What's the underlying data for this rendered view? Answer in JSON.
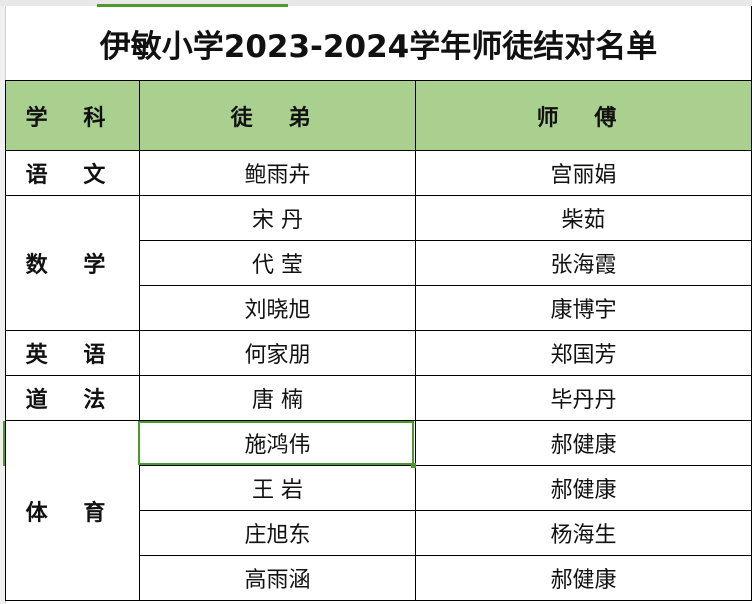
{
  "title": "伊敏小学2023-2024学年师徒结对名单",
  "headers": {
    "subject": "学 科",
    "apprentice": "徒 弟",
    "mentor": "师 傅"
  },
  "groups": [
    {
      "subject": "语 文",
      "rows": [
        {
          "apprentice": "鲍雨卉",
          "mentor": "宫丽娟"
        }
      ]
    },
    {
      "subject": "数 学",
      "rows": [
        {
          "apprentice": "宋 丹",
          "mentor": "柴茹"
        },
        {
          "apprentice": "代 莹",
          "mentor": "张海霞"
        },
        {
          "apprentice": "刘晓旭",
          "mentor": "康博宇"
        }
      ]
    },
    {
      "subject": "英 语",
      "rows": [
        {
          "apprentice": "何家朋",
          "mentor": "郑国芳"
        }
      ]
    },
    {
      "subject": "道 法",
      "rows": [
        {
          "apprentice": "唐 楠",
          "mentor": "毕丹丹"
        }
      ]
    },
    {
      "subject": "体 育",
      "rows": [
        {
          "apprentice": "施鸿伟",
          "mentor": "郝健康"
        },
        {
          "apprentice": "王 岩",
          "mentor": "郝健康"
        },
        {
          "apprentice": "庄旭东",
          "mentor": "杨海生"
        },
        {
          "apprentice": "高雨涵",
          "mentor": "郝健康"
        }
      ]
    }
  ],
  "colors": {
    "header_fill": "#a9d08e",
    "selection": "#4a9a2c"
  }
}
